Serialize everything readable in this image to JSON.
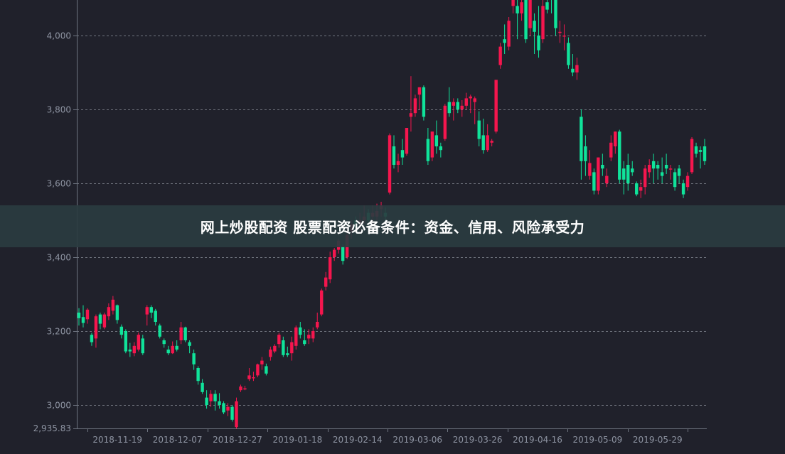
{
  "banner": {
    "title": "网上炒股配资 股票配资必备条件：资金、信用、风险承受力"
  },
  "colors": {
    "background": "#20212b",
    "up": "#f5164e",
    "down": "#10e39a",
    "axis": "#6e7480",
    "label": "#8e94a2",
    "grid": "#70747e"
  },
  "chart_data": {
    "type": "candlestick",
    "ohlc_format": "open, close, low, high",
    "y_ticks": [
      3000,
      3200,
      3400,
      3600,
      3800,
      4000
    ],
    "y_tick_labels": [
      "3,000",
      "3,200",
      "3,400",
      "3,600",
      "3,800",
      "4,000"
    ],
    "y_min_label": "2,935.83",
    "ylim": [
      2935.83,
      4096
    ],
    "x_tick_labels": [
      "2018-11-19",
      "2018-12-07",
      "2018-12-27",
      "2019-01-18",
      "2019-02-14",
      "2019-03-06",
      "2019-03-26",
      "2019-04-16",
      "2019-05-09",
      "2019-05-29"
    ],
    "grid": "horizontal dashed",
    "candles": [
      [
        3250,
        3235,
        3215,
        3262
      ],
      [
        3238,
        3222,
        3210,
        3270
      ],
      [
        3232,
        3258,
        3220,
        3262
      ],
      [
        3190,
        3170,
        3160,
        3195
      ],
      [
        3180,
        3240,
        3155,
        3245
      ],
      [
        3245,
        3220,
        3205,
        3250
      ],
      [
        3210,
        3245,
        3205,
        3250
      ],
      [
        3240,
        3265,
        3230,
        3275
      ],
      [
        3255,
        3285,
        3245,
        3295
      ],
      [
        3270,
        3230,
        3220,
        3272
      ],
      [
        3212,
        3190,
        3180,
        3218
      ],
      [
        3200,
        3145,
        3140,
        3205
      ],
      [
        3150,
        3145,
        3130,
        3168
      ],
      [
        3140,
        3160,
        3132,
        3170
      ],
      [
        3150,
        3190,
        3145,
        3196
      ],
      [
        3180,
        3140,
        3135,
        3190
      ],
      [
        3245,
        3265,
        3215,
        3270
      ],
      [
        3265,
        3250,
        3235,
        3270
      ],
      [
        3255,
        3225,
        3215,
        3260
      ],
      [
        3215,
        3185,
        3180,
        3220
      ],
      [
        3175,
        3165,
        3155,
        3180
      ],
      [
        3150,
        3140,
        3135,
        3160
      ],
      [
        3140,
        3160,
        3138,
        3172
      ],
      [
        3160,
        3150,
        3145,
        3175
      ],
      [
        3175,
        3210,
        3165,
        3225
      ],
      [
        3210,
        3175,
        3170,
        3212
      ],
      [
        3170,
        3160,
        3140,
        3175
      ],
      [
        3140,
        3110,
        3095,
        3150
      ],
      [
        3100,
        3065,
        3055,
        3105
      ],
      [
        3060,
        3035,
        3030,
        3070
      ],
      [
        3020,
        3000,
        2990,
        3040
      ],
      [
        3010,
        3030,
        2995,
        3040
      ],
      [
        3030,
        3010,
        2985,
        3040
      ],
      [
        3010,
        3000,
        2990,
        3032
      ],
      [
        3005,
        2980,
        2975,
        3010
      ],
      [
        2985,
        2995,
        2970,
        3005
      ],
      [
        2995,
        2960,
        2955,
        3000
      ],
      [
        2940,
        3010,
        2935.83,
        3020
      ],
      [
        3040,
        3050,
        3035,
        3055
      ],
      [
        3045,
        3045,
        3040,
        3052
      ],
      [
        3070,
        3080,
        3065,
        3100
      ],
      [
        3075,
        3075,
        3065,
        3090
      ],
      [
        3080,
        3110,
        3075,
        3112
      ],
      [
        3110,
        3120,
        3095,
        3130
      ],
      [
        3105,
        3085,
        3080,
        3112
      ],
      [
        3130,
        3150,
        3120,
        3158
      ],
      [
        3145,
        3160,
        3140,
        3165
      ],
      [
        3165,
        3190,
        3155,
        3195
      ],
      [
        3175,
        3135,
        3130,
        3185
      ],
      [
        3140,
        3135,
        3130,
        3158
      ],
      [
        3140,
        3170,
        3120,
        3185
      ],
      [
        3160,
        3210,
        3150,
        3215
      ],
      [
        3210,
        3190,
        3180,
        3225
      ],
      [
        3175,
        3165,
        3160,
        3205
      ],
      [
        3180,
        3190,
        3165,
        3205
      ],
      [
        3180,
        3200,
        3170,
        3210
      ],
      [
        3210,
        3225,
        3205,
        3250
      ],
      [
        3245,
        3310,
        3240,
        3315
      ],
      [
        3320,
        3345,
        3310,
        3360
      ],
      [
        3340,
        3400,
        3330,
        3415
      ],
      [
        3400,
        3420,
        3390,
        3425
      ],
      [
        3420,
        3445,
        3410,
        3450
      ],
      [
        3430,
        3390,
        3380,
        3435
      ],
      [
        3400,
        3460,
        3395,
        3480
      ],
      [
        3470,
        3490,
        3450,
        3500
      ],
      [
        3500,
        3480,
        3470,
        3510
      ],
      [
        3490,
        3500,
        3465,
        3520
      ],
      [
        3500,
        3510,
        3490,
        3540
      ],
      [
        3520,
        3500,
        3480,
        3530
      ],
      [
        3510,
        3520,
        3490,
        3540
      ],
      [
        3510,
        3525,
        3500,
        3545
      ],
      [
        3530,
        3540,
        3510,
        3550
      ],
      [
        3520,
        3510,
        3500,
        3535
      ],
      [
        3575,
        3730,
        3570,
        3735
      ],
      [
        3700,
        3650,
        3640,
        3730
      ],
      [
        3650,
        3660,
        3630,
        3680
      ],
      [
        3690,
        3670,
        3650,
        3720
      ],
      [
        3680,
        3750,
        3675,
        3750
      ],
      [
        3780,
        3790,
        3740,
        3890
      ],
      [
        3790,
        3830,
        3780,
        3840
      ],
      [
        3840,
        3860,
        3800,
        3860
      ],
      [
        3860,
        3780,
        3770,
        3865
      ],
      [
        3720,
        3660,
        3650,
        3750
      ],
      [
        3670,
        3740,
        3660,
        3740
      ],
      [
        3730,
        3700,
        3680,
        3770
      ],
      [
        3700,
        3690,
        3670,
        3710
      ],
      [
        3720,
        3810,
        3715,
        3815
      ],
      [
        3820,
        3790,
        3780,
        3860
      ],
      [
        3810,
        3820,
        3770,
        3830
      ],
      [
        3820,
        3800,
        3790,
        3830
      ],
      [
        3800,
        3810,
        3780,
        3825
      ],
      [
        3810,
        3830,
        3800,
        3845
      ],
      [
        3830,
        3835,
        3790,
        3840
      ],
      [
        3820,
        3830,
        3760,
        3835
      ],
      [
        3770,
        3720,
        3700,
        3795
      ],
      [
        3730,
        3690,
        3680,
        3775
      ],
      [
        3690,
        3730,
        3685,
        3760
      ],
      [
        3710,
        3715,
        3700,
        3720
      ],
      [
        3740,
        3880,
        3735,
        3880
      ],
      [
        3920,
        3970,
        3910,
        3980
      ],
      [
        3990,
        3980,
        3950,
        4030
      ],
      [
        3970,
        4040,
        3960,
        4050
      ],
      [
        4080,
        4120,
        4060,
        4130
      ],
      [
        4080,
        4060,
        3990,
        4110
      ],
      [
        4060,
        4090,
        4040,
        4110
      ],
      [
        4100,
        3990,
        3980,
        4120
      ],
      [
        4020,
        4100,
        4000,
        4110
      ],
      [
        4040,
        4010,
        3950,
        4060
      ],
      [
        4000,
        3960,
        3940,
        4080
      ],
      [
        3990,
        4080,
        3980,
        4120
      ],
      [
        4090,
        4070,
        4060,
        4110
      ],
      [
        4110,
        4100,
        4060,
        4120
      ],
      [
        4110,
        4020,
        4000,
        4120
      ],
      [
        4010,
        4010,
        3980,
        4040
      ],
      [
        4000,
        4000,
        3960,
        4030
      ],
      [
        3980,
        3920,
        3910,
        3995
      ],
      [
        3910,
        3900,
        3890,
        3950
      ],
      [
        3900,
        3920,
        3880,
        3940
      ],
      [
        3780,
        3660,
        3610,
        3800
      ],
      [
        3700,
        3660,
        3620,
        3730
      ],
      [
        3620,
        3655,
        3610,
        3690
      ],
      [
        3630,
        3580,
        3570,
        3640
      ],
      [
        3580,
        3670,
        3570,
        3670
      ],
      [
        3650,
        3640,
        3620,
        3680
      ],
      [
        3600,
        3620,
        3590,
        3640
      ],
      [
        3670,
        3710,
        3660,
        3730
      ],
      [
        3700,
        3740,
        3680,
        3740
      ],
      [
        3740,
        3610,
        3600,
        3745
      ],
      [
        3640,
        3610,
        3570,
        3660
      ],
      [
        3650,
        3600,
        3580,
        3680
      ],
      [
        3640,
        3630,
        3620,
        3660
      ],
      [
        3600,
        3570,
        3565,
        3605
      ],
      [
        3580,
        3590,
        3560,
        3610
      ],
      [
        3590,
        3640,
        3570,
        3650
      ],
      [
        3630,
        3650,
        3615,
        3665
      ],
      [
        3660,
        3640,
        3600,
        3680
      ],
      [
        3650,
        3640,
        3610,
        3660
      ],
      [
        3630,
        3620,
        3600,
        3670
      ],
      [
        3650,
        3640,
        3625,
        3680
      ],
      [
        3640,
        3640,
        3610,
        3650
      ],
      [
        3630,
        3590,
        3580,
        3640
      ],
      [
        3640,
        3620,
        3600,
        3650
      ],
      [
        3600,
        3570,
        3560,
        3610
      ],
      [
        3590,
        3620,
        3580,
        3630
      ],
      [
        3630,
        3720,
        3625,
        3725
      ],
      [
        3700,
        3680,
        3670,
        3710
      ],
      [
        3690,
        3685,
        3640,
        3700
      ],
      [
        3700,
        3660,
        3650,
        3720
      ]
    ]
  }
}
